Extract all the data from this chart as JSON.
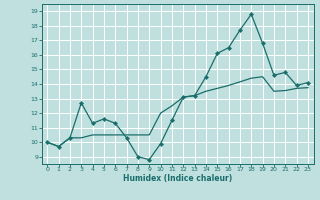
{
  "xlabel": "Humidex (Indice chaleur)",
  "background_color": "#c0e0e0",
  "grid_color": "#ffffff",
  "line_color": "#1a6e6a",
  "xlim": [
    -0.5,
    23.5
  ],
  "ylim": [
    8.5,
    19.5
  ],
  "xticks": [
    0,
    1,
    2,
    3,
    4,
    5,
    6,
    7,
    8,
    9,
    10,
    11,
    12,
    13,
    14,
    15,
    16,
    17,
    18,
    19,
    20,
    21,
    22,
    23
  ],
  "yticks": [
    9,
    10,
    11,
    12,
    13,
    14,
    15,
    16,
    17,
    18,
    19
  ],
  "line1_x": [
    0,
    1,
    2,
    3,
    4,
    5,
    6,
    7,
    8,
    9,
    10,
    11,
    12,
    13,
    14,
    15,
    16,
    17,
    18,
    19,
    20,
    21,
    22,
    23
  ],
  "line1_y": [
    10.0,
    9.7,
    10.3,
    12.7,
    11.3,
    11.6,
    11.3,
    10.3,
    9.0,
    8.8,
    9.9,
    11.5,
    13.1,
    13.2,
    14.5,
    16.1,
    16.5,
    17.7,
    18.8,
    16.8,
    14.6,
    14.8,
    13.9,
    14.1
  ],
  "line2_x": [
    0,
    1,
    2,
    3,
    4,
    5,
    6,
    7,
    8,
    9,
    10,
    11,
    12,
    13,
    14,
    15,
    16,
    17,
    18,
    19,
    20,
    21,
    22,
    23
  ],
  "line2_y": [
    10.0,
    9.7,
    10.3,
    10.3,
    10.5,
    10.5,
    10.5,
    10.5,
    10.5,
    10.5,
    12.0,
    12.5,
    13.1,
    13.2,
    13.5,
    13.7,
    13.9,
    14.15,
    14.4,
    14.5,
    13.5,
    13.55,
    13.7,
    13.75
  ]
}
